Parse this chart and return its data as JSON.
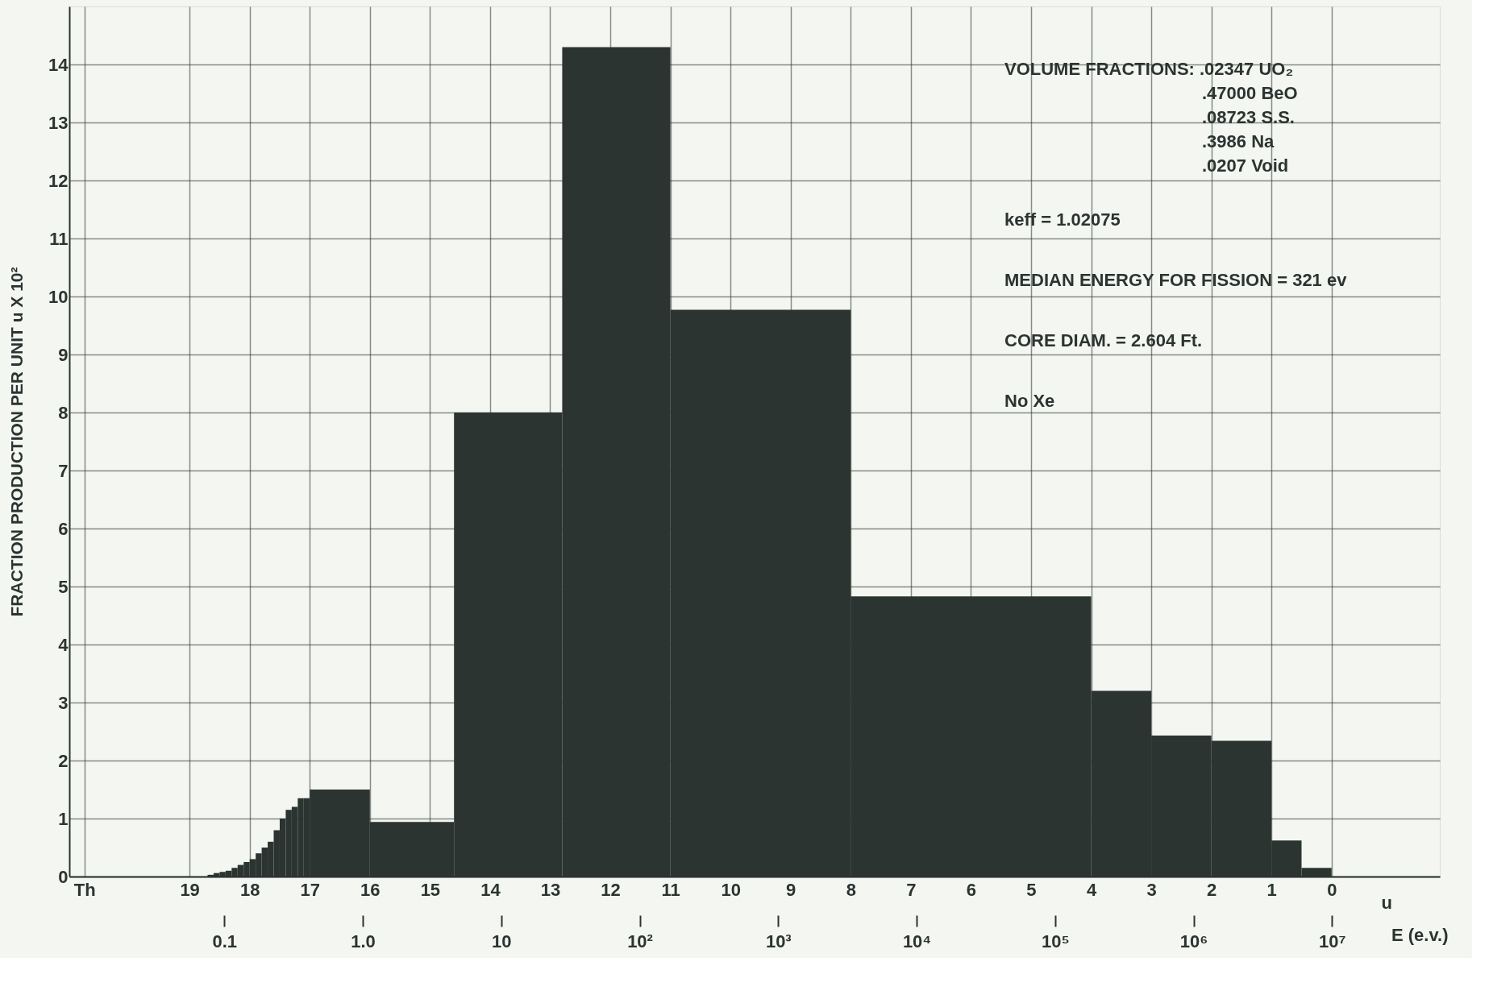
{
  "chart_data": {
    "type": "histogram",
    "ylabel": "FRACTION PRODUCTION PER UNIT u X 10²",
    "xlabel": "u",
    "x2label": "E (e.v.)",
    "bins": [
      18.7,
      18.6,
      18.5,
      18.4,
      18.3,
      18.2,
      18.1,
      18.0,
      17.9,
      17.8,
      17.7,
      17.6,
      17.5,
      17.4,
      17.3,
      17.2,
      17.1,
      17.0,
      16.0,
      14.6,
      12.8,
      11.0,
      8.0,
      4.0,
      3.0,
      2.0,
      1.0,
      0.5,
      0.0
    ],
    "values": [
      0.03,
      0.06,
      0.08,
      0.1,
      0.15,
      0.2,
      0.25,
      0.3,
      0.4,
      0.5,
      0.6,
      0.8,
      1.0,
      1.15,
      1.2,
      1.35,
      1.35,
      1.5,
      0.94,
      8.0,
      14.3,
      9.77,
      4.83,
      3.2,
      2.43,
      2.34,
      0.62,
      0.15
    ],
    "color": "#2b3431",
    "xlim": [
      21.0,
      -1.8
    ],
    "xticks": [
      {
        "value": 20.75,
        "label": "Th"
      },
      19,
      18,
      17,
      16,
      15,
      14,
      13,
      12,
      11,
      10,
      9,
      8,
      7,
      6,
      5,
      4,
      3,
      2,
      1,
      0
    ],
    "x2lim": [
      0.0076,
      60000000
    ],
    "x2ticks": [
      0.1,
      {
        "value": 1,
        "label": "1.0"
      },
      10,
      {
        "value": 100,
        "label": "10²"
      },
      {
        "value": 1000,
        "label": "10³"
      },
      {
        "value": 10000,
        "label": "10⁴"
      },
      {
        "value": 100000,
        "label": "10⁵"
      },
      {
        "value": 1000000,
        "label": "10⁶"
      },
      {
        "value": 10000000,
        "label": "10⁷"
      }
    ],
    "log": "x2",
    "ylim": [
      0,
      15
    ],
    "yticks": [
      0,
      1,
      2,
      3,
      4,
      5,
      6,
      7,
      8,
      9,
      10,
      11,
      12,
      13,
      14
    ],
    "grid": true,
    "annotations": [
      "VOLUME FRACTIONS: .02347 UO₂",
      ".47000 BeO",
      ".08723 S.S.",
      ".3986 Na",
      ".0207 Void",
      "keff = 1.02075",
      "MEDIAN ENERGY FOR FISSION = 321 ev",
      "CORE DIAM. = 2.604 Ft.",
      "No Xe"
    ]
  }
}
